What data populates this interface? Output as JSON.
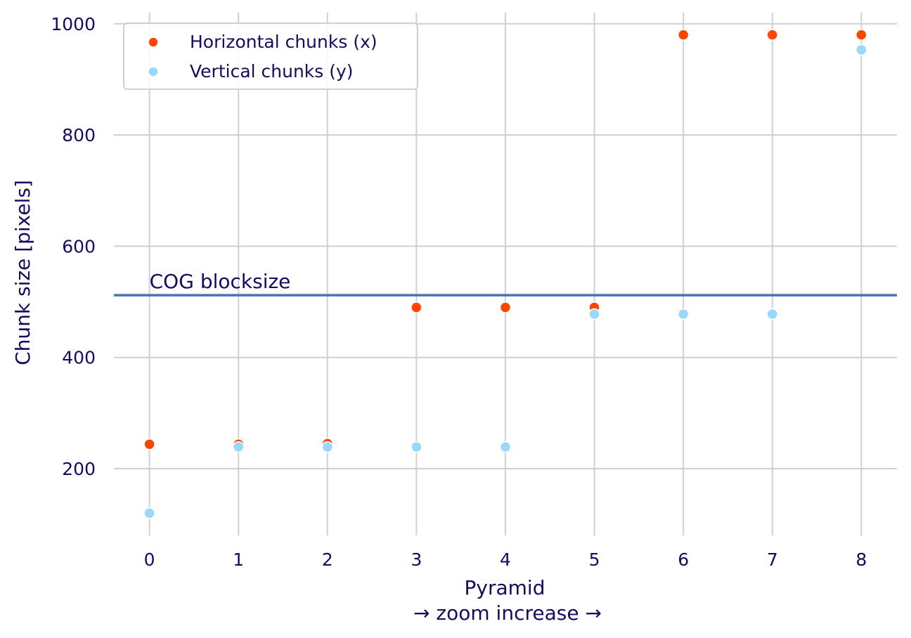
{
  "chart_data": {
    "type": "scatter",
    "xlabel": "Pyramid",
    "xlabel_sub": "→ zoom increase →",
    "ylabel": "Chunk size [pixels]",
    "x": [
      0,
      1,
      2,
      3,
      4,
      5,
      6,
      7,
      8
    ],
    "x_ticks": [
      "0",
      "1",
      "2",
      "3",
      "4",
      "5",
      "6",
      "7",
      "8"
    ],
    "y_ticks": [
      "200",
      "400",
      "600",
      "800",
      "1000"
    ],
    "xlim": [
      -0.4,
      8.4
    ],
    "ylim": [
      80,
      1020
    ],
    "grid": true,
    "legend_position": "top-left",
    "series": [
      {
        "name": "Horizontal chunks (x)",
        "color": "#ff4500",
        "values": [
          244,
          244,
          245,
          490,
          490,
          490,
          980,
          980,
          980
        ]
      },
      {
        "name": "Vertical chunks (y)",
        "color": "#99d8f8",
        "values": [
          120,
          239,
          239,
          239,
          239,
          478,
          478,
          478,
          953
        ]
      }
    ],
    "hline": {
      "label": "COG blocksize",
      "value": 512,
      "color": "#4c72b0"
    }
  }
}
